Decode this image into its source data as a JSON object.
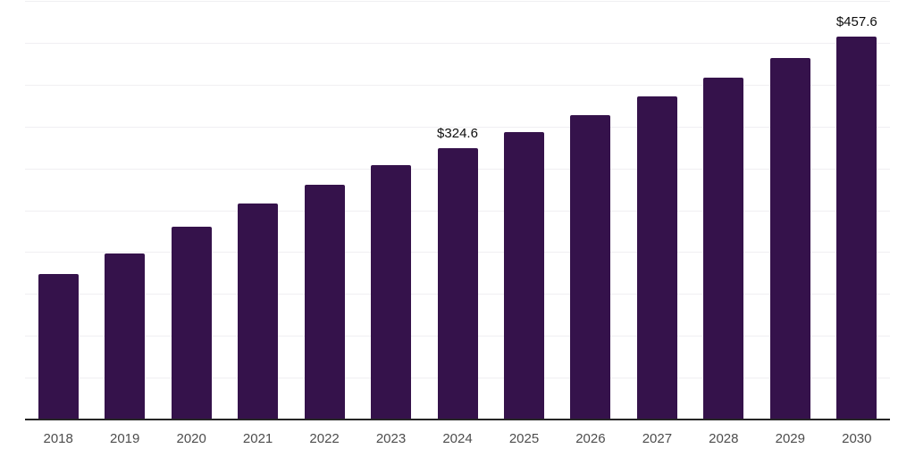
{
  "chart_data": {
    "type": "bar",
    "title": "",
    "xlabel": "",
    "ylabel": "",
    "categories": [
      "2018",
      "2019",
      "2020",
      "2021",
      "2022",
      "2023",
      "2024",
      "2025",
      "2026",
      "2027",
      "2028",
      "2029",
      "2030"
    ],
    "values": [
      174.2,
      197.9,
      230.3,
      258.0,
      280.9,
      303.9,
      324.6,
      343.7,
      364.0,
      385.5,
      408.2,
      432.2,
      457.6
    ],
    "value_labels": [
      "",
      "",
      "",
      "",
      "",
      "",
      "$324.6",
      "",
      "",
      "",
      "",
      "",
      "$457.6"
    ],
    "labeled_points": [
      {
        "category": "2024",
        "text": "$324.6"
      },
      {
        "category": "2030",
        "text": "$457.6"
      }
    ],
    "ylim": [
      0,
      500
    ],
    "gridline_step": 50,
    "grid": "horizontal",
    "y_tick_labels_shown": false,
    "legend_position": "none",
    "colors": {
      "bar": "#35124B",
      "gridline": "#F0EFF2",
      "axis_line": "#262626",
      "tick_label": "#4D4D4D",
      "value_label": "#0D0D0D",
      "background": "#FFFFFF"
    }
  }
}
